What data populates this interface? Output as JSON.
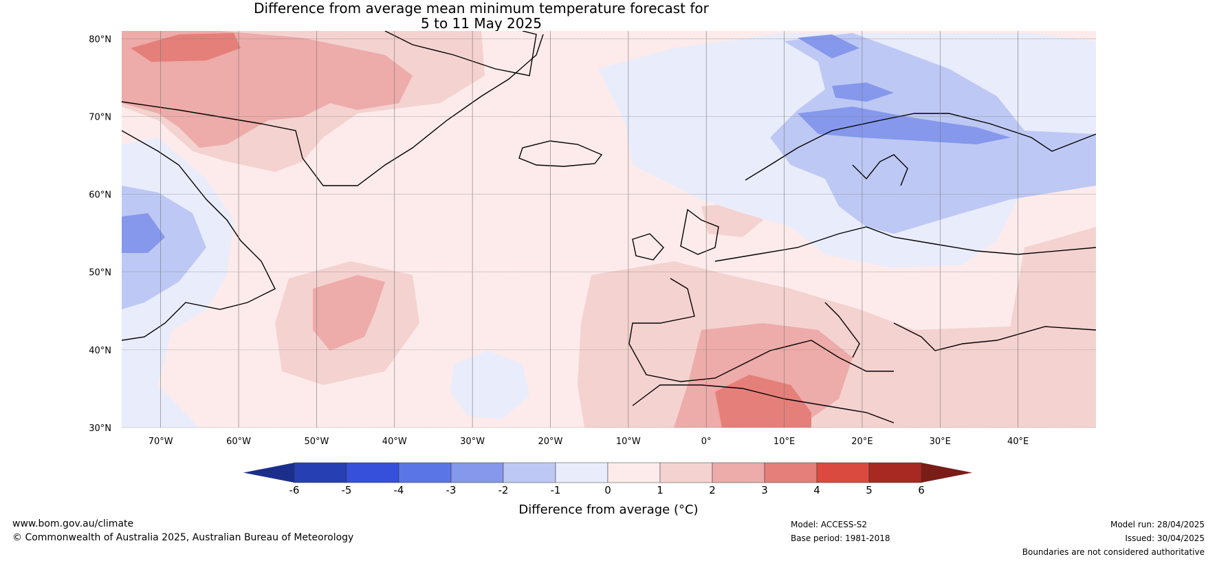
{
  "title": {
    "line1": "Difference from average mean minimum temperature forecast for",
    "line2": "5 to 11 May 2025"
  },
  "map": {
    "lon_range": [
      -75,
      50
    ],
    "lat_range": [
      30,
      81
    ],
    "lat_labels": [
      "30°N",
      "40°N",
      "50°N",
      "60°N",
      "70°N",
      "80°N"
    ],
    "lat_values": [
      30,
      40,
      50,
      60,
      70,
      80
    ],
    "lon_labels": [
      "70°W",
      "60°W",
      "50°W",
      "40°W",
      "30°W",
      "20°W",
      "10°W",
      "0°",
      "10°E",
      "20°E",
      "30°E",
      "40°E"
    ],
    "lon_values": [
      -70,
      -60,
      -50,
      -40,
      -30,
      -20,
      -10,
      0,
      10,
      20,
      30,
      40
    ]
  },
  "colorbar": {
    "title": "Difference from average (°C)",
    "ticks": [
      "-6",
      "-5",
      "-4",
      "-3",
      "-2",
      "-1",
      "0",
      "1",
      "2",
      "3",
      "4",
      "5",
      "6"
    ],
    "colors": {
      "below_min": "#1c2e8c",
      "bins": [
        "#2640b4",
        "#3650dc",
        "#5a76e6",
        "#8598ec",
        "#bec8f4",
        "#e9ecfb",
        "#fcebea",
        "#f4d2d0",
        "#edaba9",
        "#e57f7a",
        "#db4a3e",
        "#a82822"
      ],
      "above_max": "#7a1c18"
    }
  },
  "footer": {
    "website": "www.bom.gov.au/climate",
    "copyright": "© Commonwealth of Australia 2025, Australian Bureau of Meteorology",
    "model": "Model: ACCESS-S2",
    "base_period": "Base period: 1981-2018",
    "model_run": "Model run: 28/04/2025",
    "issued": "Issued: 30/04/2025",
    "disclaimer": "Boundaries are not considered authoritative"
  }
}
